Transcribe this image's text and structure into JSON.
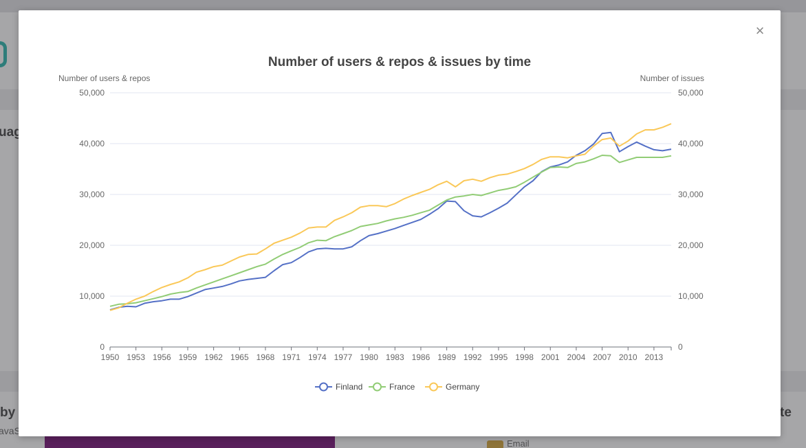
{
  "background": {
    "left_heading_fragment_1": "uag",
    "left_heading_fragment_2": "by",
    "left_sub_fragment": "avaS",
    "right_heading_fragment": "te",
    "right_legend_label": "Email"
  },
  "modal": {
    "close_label": "×"
  },
  "chart_data": {
    "type": "line",
    "title": "Number of users & repos & issues by time",
    "ylabel_left": "Number of users & repos",
    "ylabel_right": "Number of issues",
    "ylim": [
      0,
      50000
    ],
    "yticks": [
      0,
      10000,
      20000,
      30000,
      40000,
      50000
    ],
    "yticks_left_labels": [
      "0",
      "10,000",
      "20,000",
      "30,000",
      "40,000",
      "50,000"
    ],
    "yticks_right_labels": [
      "0",
      "10,000",
      "20,000",
      "30,000",
      "40,000",
      "50,000"
    ],
    "xlim": [
      1950,
      2015
    ],
    "xticks": [
      1950,
      1953,
      1956,
      1959,
      1962,
      1965,
      1968,
      1971,
      1974,
      1977,
      1980,
      1983,
      1986,
      1989,
      1992,
      1995,
      1998,
      2001,
      2004,
      2007,
      2010,
      2013
    ],
    "x": [
      1950,
      1951,
      1952,
      1953,
      1954,
      1955,
      1956,
      1957,
      1958,
      1959,
      1960,
      1961,
      1962,
      1963,
      1964,
      1965,
      1966,
      1967,
      1968,
      1969,
      1970,
      1971,
      1972,
      1973,
      1974,
      1975,
      1976,
      1977,
      1978,
      1979,
      1980,
      1981,
      1982,
      1983,
      1984,
      1985,
      1986,
      1987,
      1988,
      1989,
      1990,
      1991,
      1992,
      1993,
      1994,
      1995,
      1996,
      1997,
      1998,
      1999,
      2000,
      2001,
      2002,
      2003,
      2004,
      2005,
      2006,
      2007,
      2008,
      2009,
      2010,
      2011,
      2012,
      2013,
      2014,
      2015
    ],
    "legend_position": "bottom",
    "grid": true,
    "series": [
      {
        "name": "Finland",
        "color": "#5470c6",
        "values": [
          7300,
          7800,
          8000,
          7900,
          8600,
          8900,
          9100,
          9400,
          9400,
          9900,
          10600,
          11300,
          11600,
          11900,
          12400,
          13000,
          13300,
          13500,
          13700,
          15000,
          16200,
          16600,
          17600,
          18700,
          19300,
          19400,
          19300,
          19300,
          19700,
          20900,
          21900,
          22300,
          22800,
          23300,
          23900,
          24500,
          25100,
          26100,
          27200,
          28700,
          28600,
          26800,
          25800,
          25600,
          26400,
          27300,
          28300,
          29900,
          31500,
          32700,
          34500,
          35400,
          35800,
          36400,
          37700,
          38600,
          39900,
          42000,
          42200,
          38400,
          39400,
          40300,
          39500,
          38800,
          38600,
          38900
        ]
      },
      {
        "name": "France",
        "color": "#91cc75",
        "values": [
          8000,
          8400,
          8500,
          8700,
          9100,
          9500,
          9900,
          10400,
          10700,
          10900,
          11600,
          12200,
          12800,
          13400,
          14000,
          14600,
          15200,
          15800,
          16300,
          17300,
          18200,
          18900,
          19600,
          20500,
          21000,
          20900,
          21700,
          22300,
          22900,
          23700,
          24000,
          24300,
          24800,
          25200,
          25500,
          25900,
          26400,
          26900,
          27900,
          28900,
          29500,
          29700,
          30000,
          29800,
          30300,
          30800,
          31100,
          31500,
          32400,
          33400,
          34400,
          35300,
          35400,
          35300,
          36100,
          36400,
          37000,
          37700,
          37600,
          36300,
          36800,
          37300,
          37300,
          37300,
          37300,
          37600
        ]
      },
      {
        "name": "Germany",
        "color": "#fac858",
        "values": [
          7200,
          7700,
          8600,
          9400,
          10000,
          10900,
          11700,
          12300,
          12800,
          13600,
          14700,
          15200,
          15800,
          16100,
          16900,
          17700,
          18200,
          18300,
          19300,
          20400,
          21000,
          21600,
          22400,
          23400,
          23600,
          23600,
          24900,
          25600,
          26400,
          27500,
          27800,
          27800,
          27600,
          28200,
          29100,
          29800,
          30400,
          31000,
          31900,
          32600,
          31500,
          32700,
          33000,
          32600,
          33300,
          33800,
          34000,
          34500,
          35100,
          35900,
          36900,
          37400,
          37400,
          37200,
          37600,
          37900,
          39500,
          40800,
          41100,
          39500,
          40500,
          41900,
          42700,
          42700,
          43200,
          43900
        ]
      }
    ]
  }
}
